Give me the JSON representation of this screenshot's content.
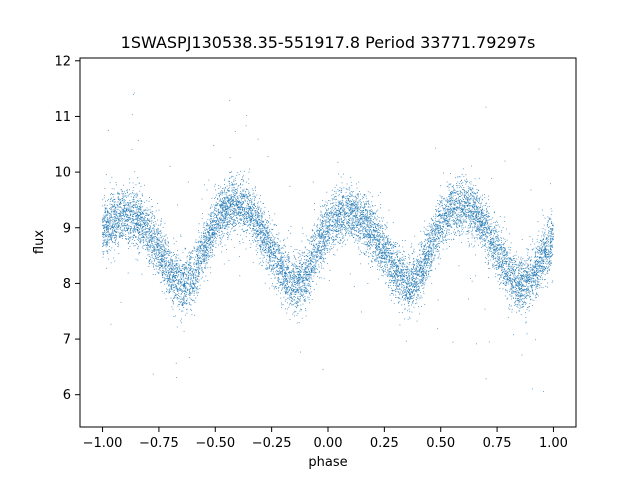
{
  "chart_data": {
    "type": "scatter",
    "title": "1SWASPJ130538.35-551917.8 Period 33771.79297s",
    "xlabel": "phase",
    "ylabel": "flux",
    "xlim": [
      -1.1,
      1.1
    ],
    "ylim": [
      5.42,
      12.05
    ],
    "xticks": [
      -1.0,
      -0.75,
      -0.5,
      -0.25,
      0.0,
      0.25,
      0.5,
      0.75,
      1.0
    ],
    "xtick_labels": [
      "−1.00",
      "−0.75",
      "−0.50",
      "−0.25",
      "0.00",
      "0.25",
      "0.50",
      "0.75",
      "1.00"
    ],
    "yticks": [
      6,
      7,
      8,
      9,
      10,
      11,
      12
    ],
    "ytick_labels": [
      "6",
      "7",
      "8",
      "9",
      "10",
      "11",
      "12"
    ],
    "grid": false,
    "legend": "none",
    "point_color": "#1f77b4",
    "series": [
      {
        "phase_range": [
          -1.0,
          1.0
        ],
        "approx_curve": {
          "phase": [
            -1.0,
            -0.95,
            -0.9,
            -0.85,
            -0.8,
            -0.75,
            -0.7,
            -0.65,
            -0.6,
            -0.55,
            -0.5,
            -0.45,
            -0.4,
            -0.35,
            -0.3,
            -0.25,
            -0.2,
            -0.15,
            -0.1,
            -0.05,
            0.0,
            0.05,
            0.1,
            0.15,
            0.2,
            0.25,
            0.3,
            0.35,
            0.4,
            0.45,
            0.5,
            0.55,
            0.6,
            0.65,
            0.7,
            0.75,
            0.8,
            0.85,
            0.9,
            0.95,
            1.0
          ],
          "flux": [
            8.95,
            9.15,
            9.25,
            9.15,
            8.95,
            8.6,
            8.2,
            8.0,
            8.1,
            8.6,
            9.1,
            9.35,
            9.4,
            9.3,
            9.0,
            8.6,
            8.2,
            7.95,
            8.1,
            8.6,
            9.0,
            9.25,
            9.3,
            9.15,
            8.9,
            8.6,
            8.2,
            8.0,
            8.1,
            8.6,
            9.1,
            9.35,
            9.4,
            9.3,
            9.0,
            8.6,
            8.2,
            7.95,
            8.1,
            8.5,
            8.8
          ]
        },
        "scatter_sigma": 0.25,
        "n_points_approx": 12000
      }
    ]
  }
}
